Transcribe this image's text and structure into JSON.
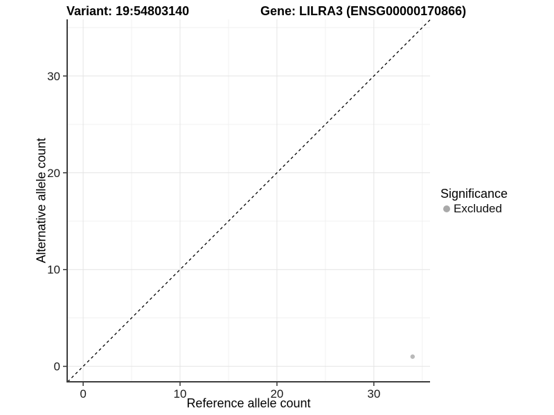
{
  "titles": {
    "variant": "Variant: 19:54803140",
    "gene": "Gene: LILRA3 (ENSG00000170866)"
  },
  "chart_data": {
    "type": "scatter",
    "title": "Variant: 19:54803140  Gene: LILRA3 (ENSG00000170866)",
    "xlabel": "Reference allele count",
    "ylabel": "Alternative allele count",
    "xlim": [
      -1.65,
      35.8
    ],
    "ylim": [
      -1.6,
      35.85
    ],
    "xticks": [
      0,
      10,
      20,
      30
    ],
    "yticks": [
      0,
      10,
      20,
      30
    ],
    "minor_xticks": [
      5,
      15,
      25,
      35
    ],
    "minor_yticks": [
      5,
      15,
      25,
      35
    ],
    "grid": "major and minor, very light gray on white",
    "legend_position": "right",
    "series": [
      {
        "name": "Excluded",
        "color": "#b9b9b9",
        "marker": "circle",
        "points": [
          {
            "x": 34,
            "y": 1
          }
        ]
      }
    ],
    "reference_line": {
      "kind": "abline",
      "slope": 1,
      "intercept": 0,
      "style": "dashed",
      "color": "#000000"
    }
  },
  "legend": {
    "title": "Significance",
    "items": [
      {
        "label": "Excluded",
        "marker": "circle",
        "color": "#a9a9a9"
      }
    ]
  },
  "colors": {
    "background": "#ffffff",
    "axis_line": "#3d3d3d",
    "tick_mark": "#333333",
    "tick_label": "#1a1a1a",
    "grid_major": "#e4e4e4",
    "grid_minor": "#f1f1f1",
    "title_text": "#000000"
  }
}
